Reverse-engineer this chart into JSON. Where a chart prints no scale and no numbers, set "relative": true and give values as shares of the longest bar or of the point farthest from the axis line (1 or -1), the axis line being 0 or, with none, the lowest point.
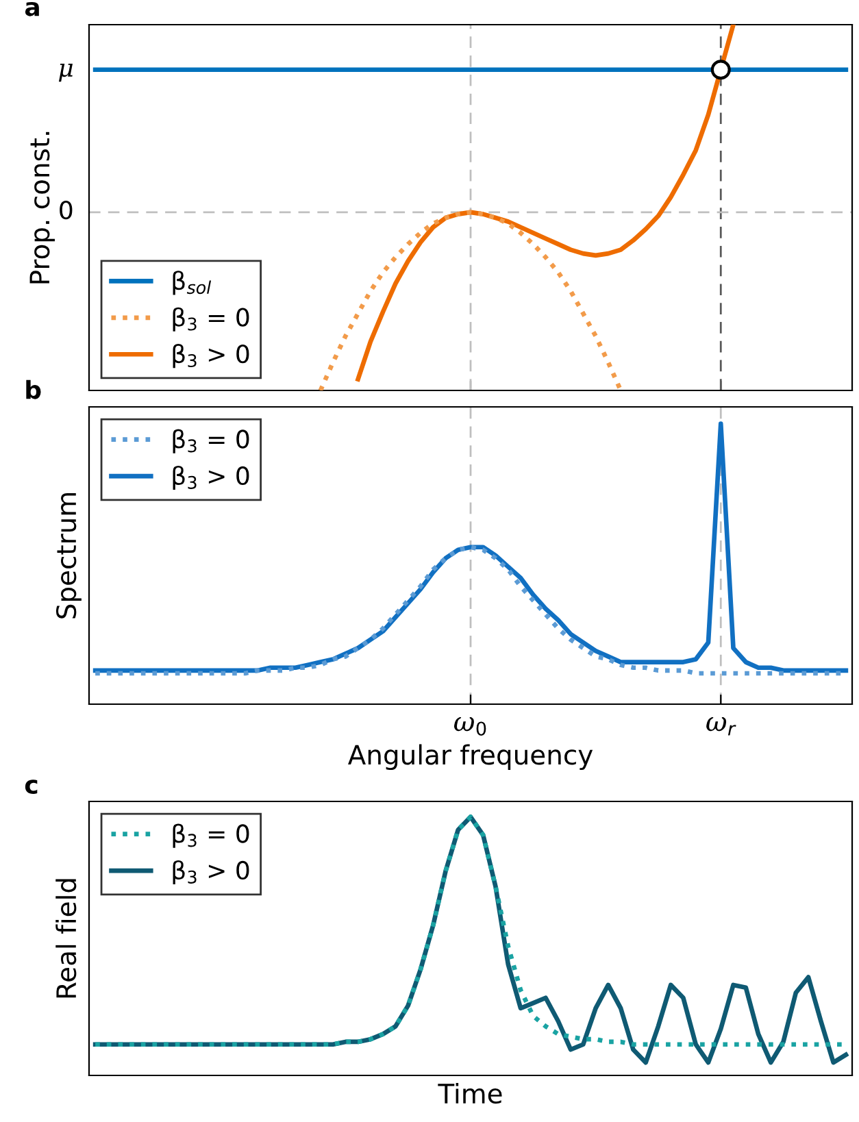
{
  "chart_data": [
    {
      "type": "line",
      "title": "a",
      "ylabel": "Prop. const.",
      "relative": true,
      "tick_labels": false,
      "legend": "bottom left",
      "grid": false,
      "categories": [
        null,
        null,
        null,
        null,
        null,
        null,
        null,
        null,
        null,
        null,
        null,
        null,
        null,
        null,
        null,
        null,
        null,
        null,
        null,
        null,
        null,
        null,
        null,
        null,
        null,
        null,
        null,
        null,
        null,
        null,
        "ω$_{0}$",
        null,
        null,
        null,
        null,
        null,
        null,
        null,
        null,
        null,
        null,
        null,
        null,
        null,
        null,
        null,
        null,
        null,
        null,
        null,
        "ω$_{r}$",
        null,
        null,
        null,
        null,
        null,
        null,
        null,
        null,
        null,
        null
      ],
      "annotations": [
        "μ"
      ],
      "ref_lines": [
        {
          "axis": "x",
          "value": "ω$_{0}$",
          "color": "#bfbfbf",
          "line_style": "dashed"
        },
        {
          "axis": "x",
          "value": "ω$_{r}$",
          "color": "#595959",
          "line_style": "dashed"
        },
        {
          "axis": "y",
          "value": 0,
          "label": "0",
          "color": "#bfbfbf",
          "line_style": "dashed"
        }
      ],
      "series": [
        {
          "name": "β$_{sol}$",
          "color": "#0072bd",
          "line_style": "solid",
          "values": [
            0.76,
            0.76,
            0.76,
            0.76,
            0.76,
            0.76,
            0.76,
            0.76,
            0.76,
            0.76,
            0.76,
            0.76,
            0.76,
            0.76,
            0.76,
            0.76,
            0.76,
            0.76,
            0.76,
            0.76,
            0.76,
            0.76,
            0.76,
            0.76,
            0.76,
            0.76,
            0.76,
            0.76,
            0.76,
            0.76,
            0.76,
            0.76,
            0.76,
            0.76,
            0.76,
            0.76,
            0.76,
            0.76,
            0.76,
            0.76,
            0.76,
            0.76,
            0.76,
            0.76,
            0.76,
            0.76,
            0.76,
            0.76,
            0.76,
            0.76,
            0.76,
            0.76,
            0.76,
            0.76,
            0.76,
            0.76,
            0.76,
            0.76,
            0.76,
            0.76,
            0.76
          ]
        },
        {
          "name": "β$_{3}$ = 0",
          "color": "#f29b4a",
          "line_style": "dotted",
          "values": [
            null,
            null,
            null,
            null,
            null,
            null,
            null,
            null,
            null,
            null,
            null,
            null,
            null,
            null,
            null,
            null,
            null,
            null,
            -0.95,
            -0.8,
            -0.66,
            -0.54,
            -0.42,
            -0.32,
            -0.24,
            -0.17,
            -0.11,
            -0.06,
            -0.03,
            -0.01,
            0,
            -0.01,
            -0.03,
            -0.06,
            -0.11,
            -0.17,
            -0.24,
            -0.32,
            -0.42,
            -0.54,
            -0.66,
            -0.8,
            -0.95,
            null,
            null,
            null,
            null,
            null,
            null,
            null,
            null,
            null,
            null,
            null,
            null,
            null,
            null,
            null,
            null,
            null,
            null
          ]
        },
        {
          "name": "β$_{3}$ > 0",
          "color": "#ee6c00",
          "line_style": "solid",
          "values": [
            null,
            null,
            null,
            null,
            null,
            null,
            null,
            null,
            null,
            null,
            null,
            null,
            null,
            null,
            null,
            null,
            null,
            null,
            null,
            null,
            null,
            -0.89,
            -0.69,
            -0.53,
            -0.38,
            -0.26,
            -0.16,
            -0.08,
            -0.03,
            -0.01,
            0,
            -0.01,
            -0.03,
            -0.05,
            -0.08,
            -0.11,
            -0.14,
            -0.17,
            -0.2,
            -0.22,
            -0.23,
            -0.22,
            -0.2,
            -0.15,
            -0.09,
            -0.02,
            0.08,
            0.2,
            0.33,
            0.52,
            0.76,
            1.0,
            null,
            null,
            null,
            null,
            null,
            null,
            null,
            null,
            null
          ]
        },
        {
          "type": "scatter",
          "color": "#ffffff",
          "marker": "circle",
          "x": [
            "ω$_{r}$"
          ],
          "values": [
            0.76
          ]
        }
      ]
    },
    {
      "type": "line",
      "title": "b",
      "ylabel": "Spectrum",
      "xlabel": "Angular frequency",
      "relative": true,
      "tick_labels": "x",
      "legend": "top left",
      "grid": "x",
      "categories": [
        null,
        null,
        null,
        null,
        null,
        null,
        null,
        null,
        null,
        null,
        null,
        null,
        null,
        null,
        null,
        null,
        null,
        null,
        null,
        null,
        null,
        null,
        null,
        null,
        null,
        null,
        null,
        null,
        null,
        null,
        "ω$_{0}$",
        null,
        null,
        null,
        null,
        null,
        null,
        null,
        null,
        null,
        null,
        null,
        null,
        null,
        null,
        null,
        null,
        null,
        null,
        null,
        "ω$_{r}$",
        null,
        null,
        null,
        null,
        null,
        null,
        null,
        null,
        null,
        null
      ],
      "series": [
        {
          "name": "β$_{3}$ = 0",
          "color": "#5b9bd5",
          "line_style": "dotted",
          "values": [
            0.11,
            0.11,
            0.11,
            0.11,
            0.11,
            0.11,
            0.11,
            0.11,
            0.11,
            0.11,
            0.11,
            0.11,
            0.11,
            0.12,
            0.12,
            0.12,
            0.13,
            0.13,
            0.14,
            0.16,
            0.17,
            0.2,
            0.23,
            0.27,
            0.32,
            0.37,
            0.42,
            0.48,
            0.52,
            0.55,
            0.56,
            0.55,
            0.52,
            0.48,
            0.42,
            0.37,
            0.32,
            0.27,
            0.23,
            0.2,
            0.17,
            0.16,
            0.14,
            0.13,
            0.13,
            0.12,
            0.12,
            0.12,
            0.11,
            0.11,
            0.11,
            0.11,
            0.11,
            0.11,
            0.11,
            0.11,
            0.11,
            0.11,
            0.11,
            0.11,
            0.11
          ]
        },
        {
          "name": "β$_{3}$ > 0",
          "color": "#1170c2",
          "line_style": "solid",
          "values": [
            0.12,
            0.12,
            0.12,
            0.12,
            0.12,
            0.12,
            0.12,
            0.12,
            0.12,
            0.12,
            0.12,
            0.12,
            0.12,
            0.12,
            0.13,
            0.13,
            0.13,
            0.14,
            0.15,
            0.16,
            0.18,
            0.2,
            0.23,
            0.26,
            0.31,
            0.36,
            0.41,
            0.47,
            0.52,
            0.55,
            0.56,
            0.56,
            0.53,
            0.49,
            0.45,
            0.39,
            0.34,
            0.3,
            0.25,
            0.22,
            0.19,
            0.17,
            0.15,
            0.15,
            0.15,
            0.15,
            0.15,
            0.15,
            0.16,
            0.22,
            1.0,
            0.2,
            0.15,
            0.13,
            0.13,
            0.12,
            0.12,
            0.12,
            0.12,
            0.12,
            0.12
          ]
        }
      ]
    },
    {
      "type": "line",
      "title": "c",
      "ylabel": "Real field",
      "xlabel": "Time",
      "relative": true,
      "tick_labels": false,
      "legend": "top left",
      "grid": false,
      "categories": [
        null,
        null,
        null,
        null,
        null,
        null,
        null,
        null,
        null,
        null,
        null,
        null,
        null,
        null,
        null,
        null,
        null,
        null,
        null,
        null,
        null,
        null,
        null,
        null,
        null,
        null,
        null,
        null,
        null,
        null,
        null,
        null,
        null,
        null,
        null,
        null,
        null,
        null,
        null,
        null,
        null,
        null,
        null,
        null,
        null,
        null,
        null,
        null,
        null,
        null,
        null,
        null,
        null,
        null,
        null,
        null,
        null,
        null,
        null,
        null,
        null
      ],
      "series": [
        {
          "name": "β$_{3}$ = 0",
          "color": "#1aa3a3",
          "line_style": "dotted",
          "values": [
            0.12,
            0.12,
            0.12,
            0.12,
            0.12,
            0.12,
            0.12,
            0.12,
            0.12,
            0.12,
            0.12,
            0.12,
            0.12,
            0.12,
            0.12,
            0.12,
            0.12,
            0.12,
            0.12,
            0.12,
            0.13,
            0.13,
            0.14,
            0.16,
            0.19,
            0.27,
            0.41,
            0.58,
            0.79,
            0.95,
            1.0,
            0.93,
            0.73,
            0.5,
            0.33,
            0.23,
            0.19,
            0.16,
            0.15,
            0.14,
            0.14,
            0.13,
            0.13,
            0.12,
            0.12,
            0.12,
            0.12,
            0.12,
            0.12,
            0.12,
            0.12,
            0.12,
            0.12,
            0.12,
            0.12,
            0.12,
            0.12,
            0.12,
            0.12,
            0.12,
            0.12
          ]
        },
        {
          "name": "β$_{3}$ > 0",
          "color": "#0f5a73",
          "line_style": "solid",
          "values": [
            0.12,
            0.12,
            0.12,
            0.12,
            0.12,
            0.12,
            0.12,
            0.12,
            0.12,
            0.12,
            0.12,
            0.12,
            0.12,
            0.12,
            0.12,
            0.12,
            0.12,
            0.12,
            0.12,
            0.12,
            0.13,
            0.13,
            0.14,
            0.16,
            0.19,
            0.27,
            0.41,
            0.58,
            0.79,
            0.95,
            1.0,
            0.93,
            0.73,
            0.43,
            0.26,
            0.28,
            0.3,
            0.21,
            0.1,
            0.12,
            0.26,
            0.35,
            0.26,
            0.1,
            0.05,
            0.19,
            0.35,
            0.3,
            0.12,
            0.05,
            0.18,
            0.35,
            0.34,
            0.16,
            0.05,
            0.13,
            0.32,
            0.38,
            0.21,
            0.05,
            0.08
          ]
        }
      ]
    }
  ]
}
